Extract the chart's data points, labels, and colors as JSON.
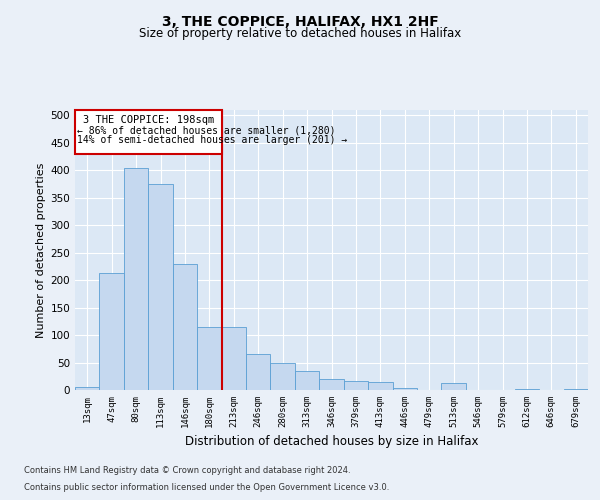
{
  "title_line1": "3, THE COPPICE, HALIFAX, HX1 2HF",
  "title_line2": "Size of property relative to detached houses in Halifax",
  "xlabel": "Distribution of detached houses by size in Halifax",
  "ylabel": "Number of detached properties",
  "footnote1": "Contains HM Land Registry data © Crown copyright and database right 2024.",
  "footnote2": "Contains public sector information licensed under the Open Government Licence v3.0.",
  "property_label": "3 THE COPPICE: 198sqm",
  "smaller_pct": 86,
  "smaller_count": 1280,
  "larger_pct": 14,
  "larger_count": 201,
  "bar_categories": [
    "13sqm",
    "47sqm",
    "80sqm",
    "113sqm",
    "146sqm",
    "180sqm",
    "213sqm",
    "246sqm",
    "280sqm",
    "313sqm",
    "346sqm",
    "379sqm",
    "413sqm",
    "446sqm",
    "479sqm",
    "513sqm",
    "546sqm",
    "579sqm",
    "612sqm",
    "646sqm",
    "679sqm"
  ],
  "bar_values": [
    5,
    213,
    405,
    375,
    230,
    115,
    115,
    65,
    50,
    35,
    20,
    17,
    15,
    3,
    0,
    12,
    0,
    0,
    1,
    0,
    1
  ],
  "bar_color": "#c5d8ef",
  "bar_edge_color": "#5a9fd4",
  "vline_x": 5.5,
  "vline_color": "#cc0000",
  "ylim": [
    0,
    510
  ],
  "yticks": [
    0,
    50,
    100,
    150,
    200,
    250,
    300,
    350,
    400,
    450,
    500
  ],
  "bg_color": "#eaf0f8",
  "axes_bg_color": "#dce8f5",
  "grid_color": "#ffffff"
}
